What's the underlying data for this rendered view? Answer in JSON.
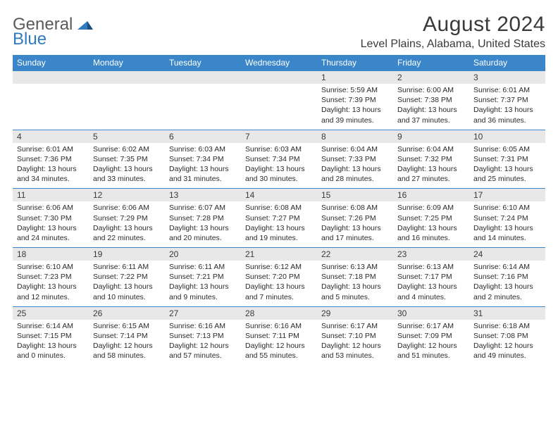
{
  "brand": {
    "general": "General",
    "blue": "Blue"
  },
  "title": "August 2024",
  "location": "Level Plains, Alabama, United States",
  "weekdays": [
    "Sunday",
    "Monday",
    "Tuesday",
    "Wednesday",
    "Thursday",
    "Friday",
    "Saturday"
  ],
  "colors": {
    "header_bg": "#3a86c8",
    "header_text": "#ffffff",
    "daynum_bg": "#e8e8e8",
    "rule": "#3a86c8",
    "brand_blue": "#2f7bbf",
    "brand_gray": "#5a5a5a"
  },
  "weeks": [
    [
      null,
      null,
      null,
      null,
      {
        "n": "1",
        "sr": "Sunrise: 5:59 AM",
        "ss": "Sunset: 7:39 PM",
        "dl": "Daylight: 13 hours and 39 minutes."
      },
      {
        "n": "2",
        "sr": "Sunrise: 6:00 AM",
        "ss": "Sunset: 7:38 PM",
        "dl": "Daylight: 13 hours and 37 minutes."
      },
      {
        "n": "3",
        "sr": "Sunrise: 6:01 AM",
        "ss": "Sunset: 7:37 PM",
        "dl": "Daylight: 13 hours and 36 minutes."
      }
    ],
    [
      {
        "n": "4",
        "sr": "Sunrise: 6:01 AM",
        "ss": "Sunset: 7:36 PM",
        "dl": "Daylight: 13 hours and 34 minutes."
      },
      {
        "n": "5",
        "sr": "Sunrise: 6:02 AM",
        "ss": "Sunset: 7:35 PM",
        "dl": "Daylight: 13 hours and 33 minutes."
      },
      {
        "n": "6",
        "sr": "Sunrise: 6:03 AM",
        "ss": "Sunset: 7:34 PM",
        "dl": "Daylight: 13 hours and 31 minutes."
      },
      {
        "n": "7",
        "sr": "Sunrise: 6:03 AM",
        "ss": "Sunset: 7:34 PM",
        "dl": "Daylight: 13 hours and 30 minutes."
      },
      {
        "n": "8",
        "sr": "Sunrise: 6:04 AM",
        "ss": "Sunset: 7:33 PM",
        "dl": "Daylight: 13 hours and 28 minutes."
      },
      {
        "n": "9",
        "sr": "Sunrise: 6:04 AM",
        "ss": "Sunset: 7:32 PM",
        "dl": "Daylight: 13 hours and 27 minutes."
      },
      {
        "n": "10",
        "sr": "Sunrise: 6:05 AM",
        "ss": "Sunset: 7:31 PM",
        "dl": "Daylight: 13 hours and 25 minutes."
      }
    ],
    [
      {
        "n": "11",
        "sr": "Sunrise: 6:06 AM",
        "ss": "Sunset: 7:30 PM",
        "dl": "Daylight: 13 hours and 24 minutes."
      },
      {
        "n": "12",
        "sr": "Sunrise: 6:06 AM",
        "ss": "Sunset: 7:29 PM",
        "dl": "Daylight: 13 hours and 22 minutes."
      },
      {
        "n": "13",
        "sr": "Sunrise: 6:07 AM",
        "ss": "Sunset: 7:28 PM",
        "dl": "Daylight: 13 hours and 20 minutes."
      },
      {
        "n": "14",
        "sr": "Sunrise: 6:08 AM",
        "ss": "Sunset: 7:27 PM",
        "dl": "Daylight: 13 hours and 19 minutes."
      },
      {
        "n": "15",
        "sr": "Sunrise: 6:08 AM",
        "ss": "Sunset: 7:26 PM",
        "dl": "Daylight: 13 hours and 17 minutes."
      },
      {
        "n": "16",
        "sr": "Sunrise: 6:09 AM",
        "ss": "Sunset: 7:25 PM",
        "dl": "Daylight: 13 hours and 16 minutes."
      },
      {
        "n": "17",
        "sr": "Sunrise: 6:10 AM",
        "ss": "Sunset: 7:24 PM",
        "dl": "Daylight: 13 hours and 14 minutes."
      }
    ],
    [
      {
        "n": "18",
        "sr": "Sunrise: 6:10 AM",
        "ss": "Sunset: 7:23 PM",
        "dl": "Daylight: 13 hours and 12 minutes."
      },
      {
        "n": "19",
        "sr": "Sunrise: 6:11 AM",
        "ss": "Sunset: 7:22 PM",
        "dl": "Daylight: 13 hours and 10 minutes."
      },
      {
        "n": "20",
        "sr": "Sunrise: 6:11 AM",
        "ss": "Sunset: 7:21 PM",
        "dl": "Daylight: 13 hours and 9 minutes."
      },
      {
        "n": "21",
        "sr": "Sunrise: 6:12 AM",
        "ss": "Sunset: 7:20 PM",
        "dl": "Daylight: 13 hours and 7 minutes."
      },
      {
        "n": "22",
        "sr": "Sunrise: 6:13 AM",
        "ss": "Sunset: 7:18 PM",
        "dl": "Daylight: 13 hours and 5 minutes."
      },
      {
        "n": "23",
        "sr": "Sunrise: 6:13 AM",
        "ss": "Sunset: 7:17 PM",
        "dl": "Daylight: 13 hours and 4 minutes."
      },
      {
        "n": "24",
        "sr": "Sunrise: 6:14 AM",
        "ss": "Sunset: 7:16 PM",
        "dl": "Daylight: 13 hours and 2 minutes."
      }
    ],
    [
      {
        "n": "25",
        "sr": "Sunrise: 6:14 AM",
        "ss": "Sunset: 7:15 PM",
        "dl": "Daylight: 13 hours and 0 minutes."
      },
      {
        "n": "26",
        "sr": "Sunrise: 6:15 AM",
        "ss": "Sunset: 7:14 PM",
        "dl": "Daylight: 12 hours and 58 minutes."
      },
      {
        "n": "27",
        "sr": "Sunrise: 6:16 AM",
        "ss": "Sunset: 7:13 PM",
        "dl": "Daylight: 12 hours and 57 minutes."
      },
      {
        "n": "28",
        "sr": "Sunrise: 6:16 AM",
        "ss": "Sunset: 7:11 PM",
        "dl": "Daylight: 12 hours and 55 minutes."
      },
      {
        "n": "29",
        "sr": "Sunrise: 6:17 AM",
        "ss": "Sunset: 7:10 PM",
        "dl": "Daylight: 12 hours and 53 minutes."
      },
      {
        "n": "30",
        "sr": "Sunrise: 6:17 AM",
        "ss": "Sunset: 7:09 PM",
        "dl": "Daylight: 12 hours and 51 minutes."
      },
      {
        "n": "31",
        "sr": "Sunrise: 6:18 AM",
        "ss": "Sunset: 7:08 PM",
        "dl": "Daylight: 12 hours and 49 minutes."
      }
    ]
  ]
}
